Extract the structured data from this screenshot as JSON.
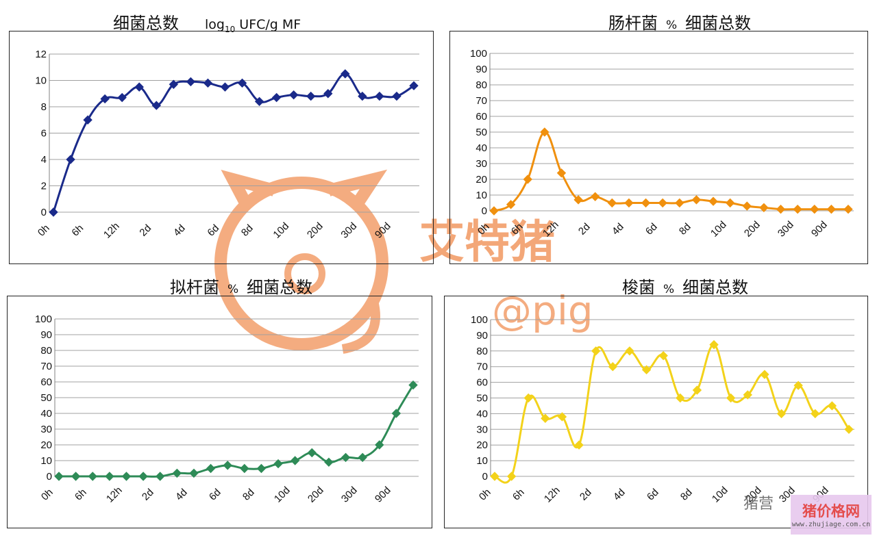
{
  "watermark": {
    "brand": "艾特猪",
    "handle": "@pig",
    "color": "#f08a4b"
  },
  "corner_logo": {
    "text": "猪价格网",
    "site": "www.zhujiage.com.cn"
  },
  "wechat_text": "猪营",
  "chart_data": [
    {
      "id": "total",
      "type": "line",
      "title": "细菌总数",
      "unit_prefix": "log",
      "unit_sub": "10",
      "unit_suffix": " UFC/g MF",
      "color": "#1a2a8a",
      "ylim": [
        0,
        12
      ],
      "yticks": [
        0,
        2,
        4,
        6,
        8,
        10,
        12
      ],
      "xtick_labels": [
        "0h",
        "6h",
        "12h",
        "2d",
        "4d",
        "6d",
        "8d",
        "10d",
        "20d",
        "30d",
        "90d"
      ],
      "grid": true,
      "values": [
        0,
        4,
        7,
        8.6,
        8.7,
        9.5,
        8.1,
        9.7,
        9.9,
        9.8,
        9.5,
        9.8,
        8.4,
        8.7,
        8.9,
        8.8,
        9.0,
        10.5,
        8.8,
        8.8,
        8.8,
        9.6
      ]
    },
    {
      "id": "entero",
      "type": "line",
      "title": "肠杆菌",
      "pct": "%",
      "title_suffix": "细菌总数",
      "color": "#f0900e",
      "ylim": [
        0,
        100
      ],
      "yticks": [
        0,
        10,
        20,
        30,
        40,
        50,
        60,
        70,
        80,
        90,
        100
      ],
      "xtick_labels": [
        "0h",
        "6h",
        "12h",
        "2d",
        "4d",
        "6d",
        "8d",
        "10d",
        "20d",
        "30d",
        "90d"
      ],
      "grid": true,
      "values": [
        0,
        4,
        20,
        50,
        24,
        7,
        9,
        5,
        5,
        5,
        5,
        5,
        7,
        6,
        5,
        3,
        2,
        1,
        1,
        1,
        1,
        1
      ]
    },
    {
      "id": "bacteroides",
      "type": "line",
      "title": "拟杆菌",
      "pct": "%",
      "title_suffix": "细菌总数",
      "color": "#2e8b57",
      "ylim": [
        0,
        100
      ],
      "yticks": [
        0,
        10,
        20,
        30,
        40,
        50,
        60,
        70,
        80,
        90,
        100
      ],
      "xtick_labels": [
        "0h",
        "6h",
        "12h",
        "2d",
        "4d",
        "6d",
        "8d",
        "10d",
        "20d",
        "30d",
        "90d"
      ],
      "grid": true,
      "values": [
        0,
        0,
        0,
        0,
        0,
        0,
        0,
        2,
        2,
        5,
        7,
        5,
        5,
        8,
        10,
        15,
        9,
        12,
        12,
        20,
        40,
        58
      ]
    },
    {
      "id": "clostridia",
      "type": "line",
      "title": "梭菌",
      "pct": "%",
      "title_suffix": "细菌总数",
      "color": "#f3d21a",
      "ylim": [
        0,
        100
      ],
      "yticks": [
        0,
        10,
        20,
        30,
        40,
        50,
        60,
        70,
        80,
        90,
        100
      ],
      "xtick_labels": [
        "0h",
        "6h",
        "12h",
        "2d",
        "4d",
        "6d",
        "8d",
        "10d",
        "20d",
        "30d",
        "90d"
      ],
      "grid": true,
      "values": [
        0,
        0,
        50,
        37,
        38,
        20,
        80,
        70,
        80,
        68,
        77,
        50,
        55,
        84,
        50,
        52,
        65,
        40,
        58,
        40,
        45,
        30
      ]
    }
  ]
}
